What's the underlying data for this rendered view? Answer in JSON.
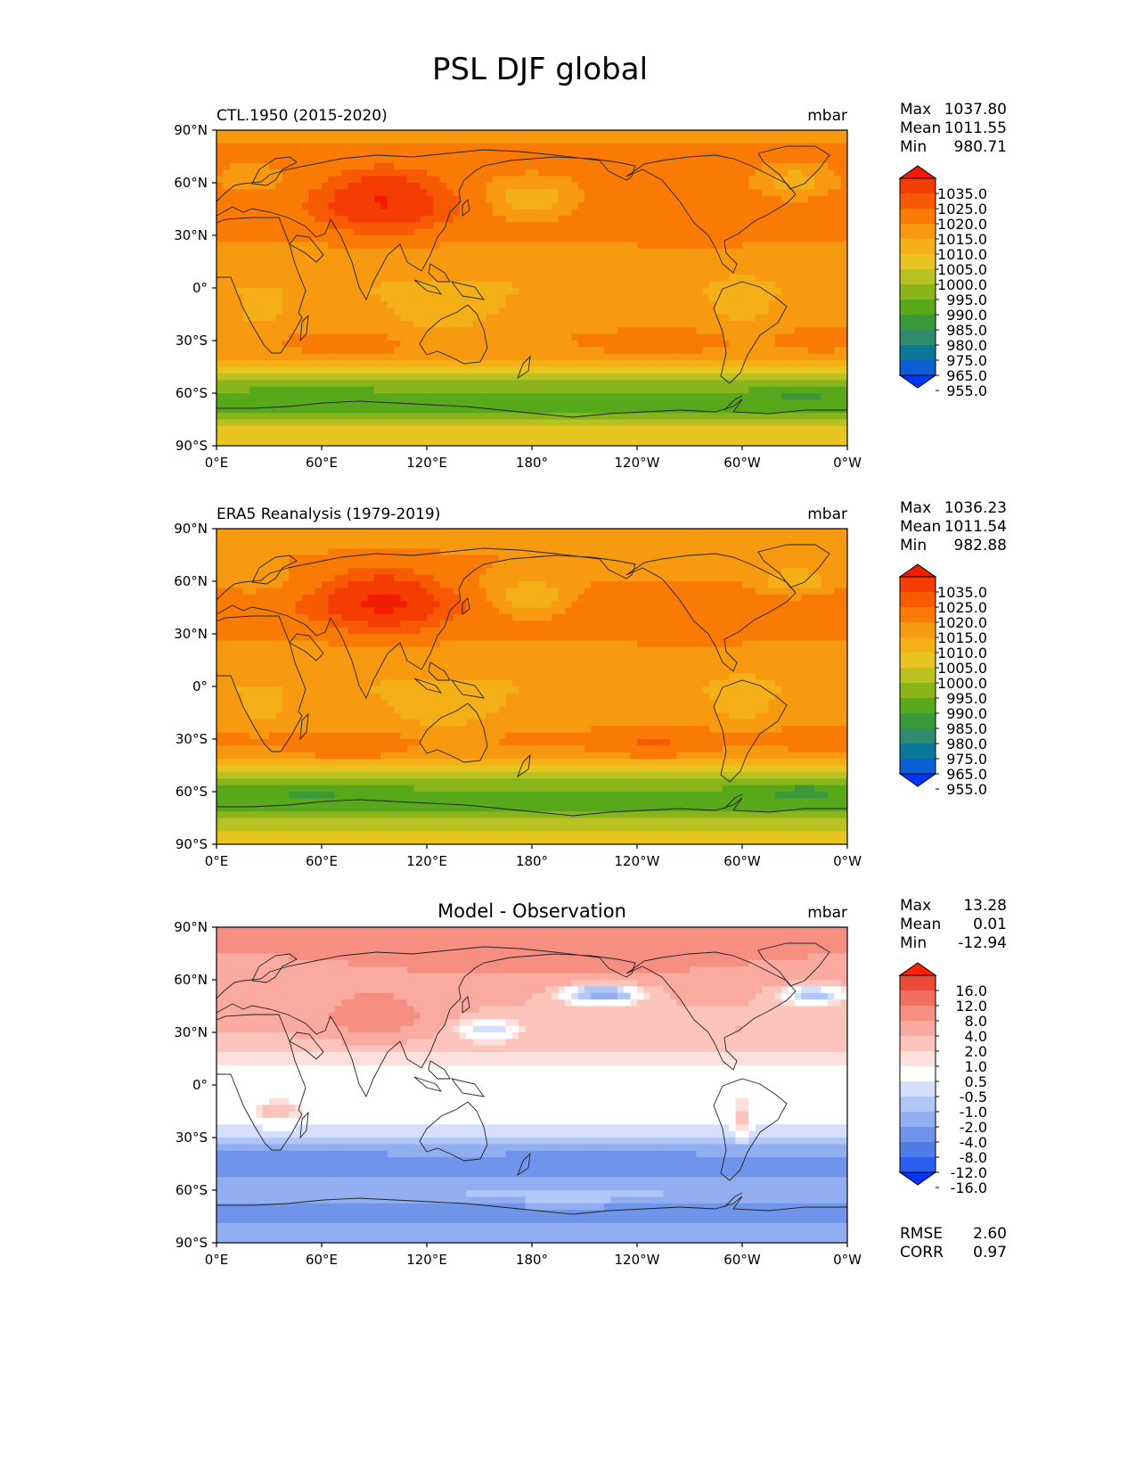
{
  "title": "PSL DJF global",
  "colors": {
    "abs_levels": [
      "#0036ff",
      "#0a5fd4",
      "#0a7896",
      "#2f8a6e",
      "#3a9a3a",
      "#58a81c",
      "#8ab41c",
      "#b8c220",
      "#e8c41e",
      "#f5b018",
      "#f79a10",
      "#fa7a06",
      "#f85a04",
      "#f53c02",
      "#f31c00"
    ],
    "diff_levels": [
      "#0033ff",
      "#2a5ef0",
      "#4f7ce6",
      "#6f94ea",
      "#90aef0",
      "#b0c6f6",
      "#d4e0fb",
      "#ffffff",
      "#fde0dc",
      "#fcc4bc",
      "#fbaaa0",
      "#f78e82",
      "#f16e60",
      "#ea4a36",
      "#ff2200"
    ],
    "land_outline": "#222222"
  },
  "chart_data": [
    {
      "type": "heatmap",
      "id": "model",
      "title": "CTL.1950 (2015-2020)",
      "units": "mbar",
      "stats": {
        "max_label": "Max",
        "max": "1037.80",
        "mean_label": "Mean",
        "mean": "1011.55",
        "min_label": "Min",
        "min": "980.71"
      },
      "x_ticks": [
        "0°E",
        "60°E",
        "120°E",
        "180°",
        "120°W",
        "60°W",
        "0°W"
      ],
      "y_ticks": [
        "90°N",
        "60°N",
        "30°N",
        "0°",
        "30°S",
        "60°S",
        "90°S"
      ],
      "colorbar_ticks": [
        "1035.0",
        "1025.0",
        "1020.0",
        "1015.0",
        "1010.0",
        "1005.0",
        "1000.0",
        "995.0",
        "990.0",
        "985.0",
        "980.0",
        "975.0",
        "965.0",
        "955.0"
      ],
      "xlim": [
        0,
        360
      ],
      "ylim": [
        -90,
        90
      ],
      "latitude_profile": [
        [
          90,
          1014
        ],
        [
          75,
          1016
        ],
        [
          60,
          1016
        ],
        [
          45,
          1018
        ],
        [
          30,
          1016
        ],
        [
          15,
          1012
        ],
        [
          0,
          1010
        ],
        [
          -15,
          1012
        ],
        [
          -30,
          1015
        ],
        [
          -40,
          1012
        ],
        [
          -50,
          998
        ],
        [
          -60,
          989
        ],
        [
          -70,
          990
        ],
        [
          -80,
          1000
        ],
        [
          -90,
          1001
        ]
      ]
    },
    {
      "type": "heatmap",
      "id": "obs",
      "title": "ERA5 Reanalysis (1979-2019)",
      "units": "mbar",
      "stats": {
        "max_label": "Max",
        "max": "1036.23",
        "mean_label": "Mean",
        "mean": "1011.54",
        "min_label": "Min",
        "min": "982.88"
      },
      "x_ticks": [
        "0°E",
        "60°E",
        "120°E",
        "180°",
        "120°W",
        "60°W",
        "0°W"
      ],
      "y_ticks": [
        "90°N",
        "60°N",
        "30°N",
        "0°",
        "30°S",
        "60°S",
        "90°S"
      ],
      "colorbar_ticks": [
        "1035.0",
        "1025.0",
        "1020.0",
        "1015.0",
        "1010.0",
        "1005.0",
        "1000.0",
        "995.0",
        "990.0",
        "985.0",
        "980.0",
        "975.0",
        "965.0",
        "955.0"
      ],
      "xlim": [
        0,
        360
      ],
      "ylim": [
        -90,
        90
      ],
      "latitude_profile": [
        [
          90,
          1012
        ],
        [
          75,
          1015
        ],
        [
          60,
          1015
        ],
        [
          45,
          1019
        ],
        [
          30,
          1016
        ],
        [
          15,
          1012
        ],
        [
          0,
          1010
        ],
        [
          -15,
          1012
        ],
        [
          -30,
          1016
        ],
        [
          -40,
          1013
        ],
        [
          -50,
          999
        ],
        [
          -60,
          988
        ],
        [
          -70,
          990
        ],
        [
          -80,
          999
        ],
        [
          -90,
          1002
        ]
      ]
    },
    {
      "type": "heatmap",
      "id": "diff",
      "title": "Model - Observation",
      "units": "mbar",
      "stats": {
        "max_label": "Max",
        "max": "13.28",
        "mean_label": "Mean",
        "mean": "0.01",
        "min_label": "Min",
        "min": "-12.94"
      },
      "extra_stats": {
        "rmse_label": "RMSE",
        "rmse": "2.60",
        "corr_label": "CORR",
        "corr": "0.97"
      },
      "x_ticks": [
        "0°E",
        "60°E",
        "120°E",
        "180°",
        "120°W",
        "60°W",
        "0°W"
      ],
      "y_ticks": [
        "90°N",
        "60°N",
        "30°N",
        "0°",
        "30°S",
        "60°S",
        "90°S"
      ],
      "colorbar_ticks": [
        "16.0",
        "12.0",
        "8.0",
        "4.0",
        "2.0",
        "1.0",
        "0.5",
        "-0.5",
        "-1.0",
        "-2.0",
        "-4.0",
        "-8.0",
        "-12.0",
        "-16.0"
      ],
      "xlim": [
        0,
        360
      ],
      "ylim": [
        -90,
        90
      ],
      "latitude_profile": [
        [
          90,
          4
        ],
        [
          75,
          4
        ],
        [
          60,
          3
        ],
        [
          45,
          2
        ],
        [
          30,
          2
        ],
        [
          15,
          0.6
        ],
        [
          0,
          0
        ],
        [
          -15,
          -0.3
        ],
        [
          -30,
          -0.8
        ],
        [
          -40,
          -4
        ],
        [
          -50,
          -5
        ],
        [
          -60,
          -2
        ],
        [
          -70,
          -5
        ],
        [
          -80,
          -4
        ],
        [
          -90,
          -4
        ]
      ]
    }
  ]
}
